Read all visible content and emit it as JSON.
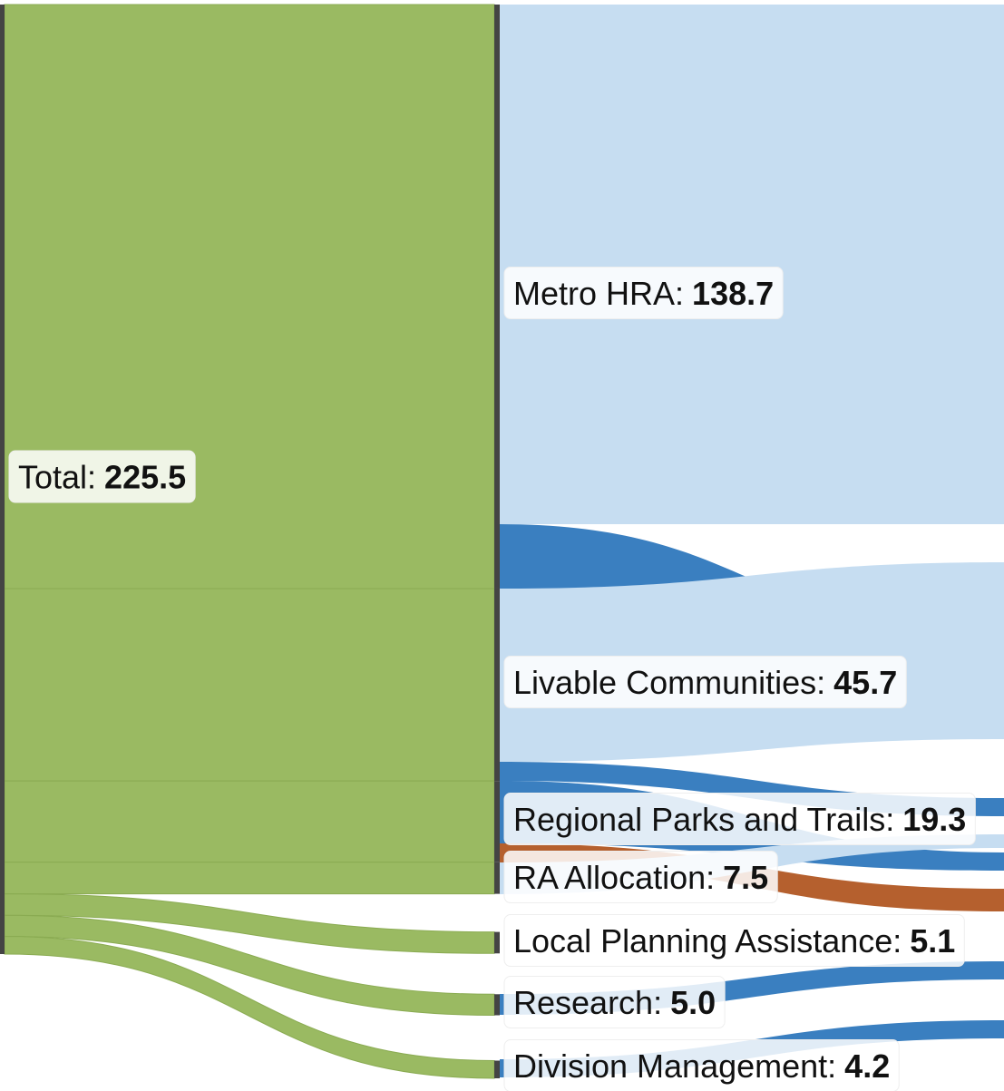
{
  "chart_data": {
    "type": "sankey",
    "source": {
      "name": "Total:",
      "value": 225.5
    },
    "targets": [
      "Metro HRA:",
      "Livable Communities:",
      "Regional Parks and Trails:",
      "RA Allocation:",
      "Local Planning Assistance:",
      "Research:",
      "Division Management:"
    ],
    "values": [
      138.7,
      45.7,
      19.3,
      7.5,
      5.1,
      5.0,
      4.2
    ],
    "value_labels": [
      "138.7",
      "45.7",
      "19.3",
      "7.5",
      "5.1",
      "5.0",
      "4.2"
    ],
    "color": "#9aba62"
  }
}
